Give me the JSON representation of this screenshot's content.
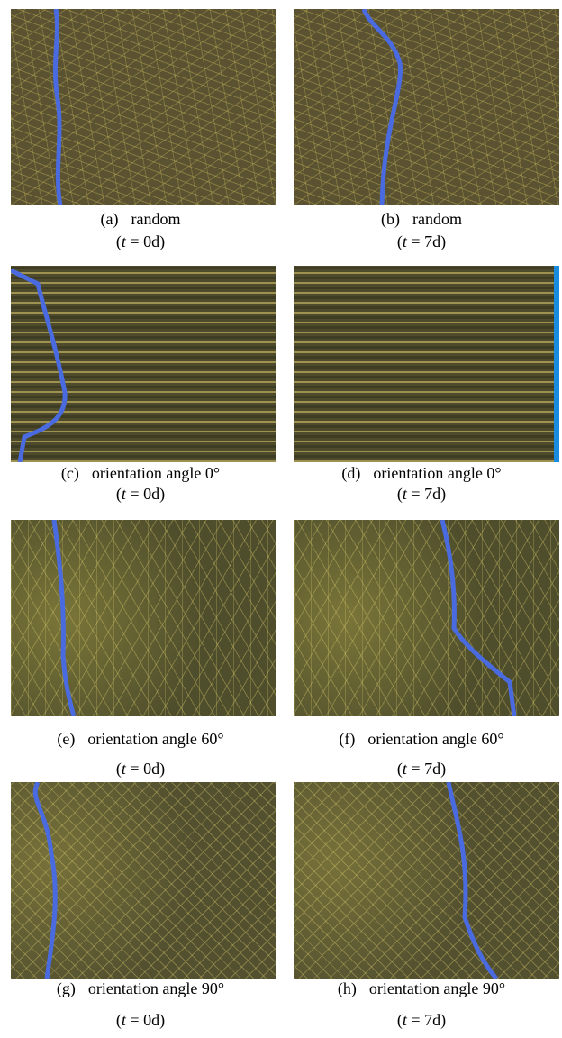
{
  "panels": [
    {
      "label": "(a)",
      "description": "random",
      "time": {
        "open": "(",
        "var": "t",
        "rest": " = 0d)"
      }
    },
    {
      "label": "(b)",
      "description": "random",
      "time": {
        "open": "(",
        "var": "t",
        "rest": " = 7d)"
      }
    },
    {
      "label": "(c)",
      "description": "orientation angle 0°",
      "time": {
        "open": "(",
        "var": "t",
        "rest": " = 0d)"
      }
    },
    {
      "label": "(d)",
      "description": "orientation angle 0°",
      "time": {
        "open": "(",
        "var": "t",
        "rest": " = 7d)"
      }
    },
    {
      "label": "(e)",
      "description": "orientation angle 60°",
      "time": {
        "open": "(",
        "var": "t",
        "rest": " = 0d)"
      }
    },
    {
      "label": "(f)",
      "description": "orientation angle 60°",
      "time": {
        "open": "(",
        "var": "t",
        "rest": " = 7d)"
      }
    },
    {
      "label": "(g)",
      "description": "orientation angle 90°",
      "time": {
        "open": "(",
        "var": "t",
        "rest": " = 0d)"
      }
    },
    {
      "label": "(h)",
      "description": "orientation angle 90°",
      "time": {
        "open": "(",
        "var": "t",
        "rest": " = 7d)"
      }
    }
  ]
}
